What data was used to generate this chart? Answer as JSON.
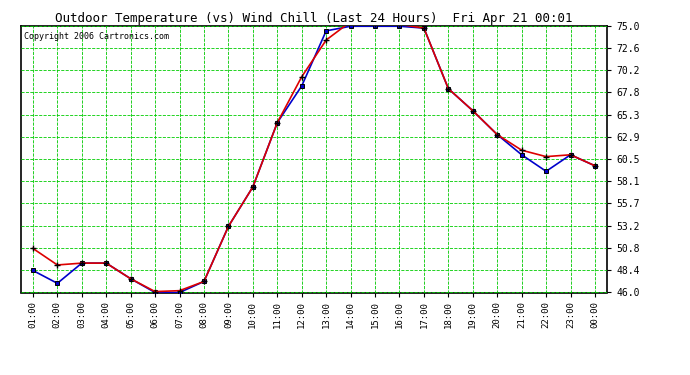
{
  "title": "Outdoor Temperature (vs) Wind Chill (Last 24 Hours)  Fri Apr 21 00:01",
  "copyright": "Copyright 2006 Cartronics.com",
  "x_labels": [
    "01:00",
    "02:00",
    "03:00",
    "04:00",
    "05:00",
    "06:00",
    "07:00",
    "08:00",
    "09:00",
    "10:00",
    "11:00",
    "12:00",
    "13:00",
    "14:00",
    "15:00",
    "16:00",
    "17:00",
    "18:00",
    "19:00",
    "20:00",
    "21:00",
    "22:00",
    "23:00",
    "00:00"
  ],
  "temp_red": [
    50.8,
    49.0,
    49.2,
    49.2,
    47.5,
    46.1,
    46.2,
    47.2,
    53.2,
    57.5,
    64.5,
    69.5,
    73.5,
    75.5,
    75.2,
    75.2,
    74.8,
    68.2,
    65.8,
    63.2,
    61.5,
    60.8,
    61.0,
    59.8
  ],
  "wind_blue": [
    48.4,
    47.0,
    49.2,
    49.2,
    47.5,
    46.0,
    46.0,
    47.2,
    53.2,
    57.5,
    64.5,
    68.5,
    74.5,
    75.0,
    75.0,
    75.0,
    74.8,
    68.2,
    65.8,
    63.2,
    61.0,
    59.2,
    61.0,
    59.8
  ],
  "y_min": 46.0,
  "y_max": 75.0,
  "y_ticks": [
    46.0,
    48.4,
    50.8,
    53.2,
    55.7,
    58.1,
    60.5,
    62.9,
    65.3,
    67.8,
    70.2,
    72.6,
    75.0
  ],
  "bg_color": "#ffffff",
  "plot_bg": "#ffffff",
  "grid_major_color": "#00cc00",
  "grid_minor_color": "#aaffaa",
  "red_color": "#dd0000",
  "blue_color": "#0000cc",
  "title_color": "#000000",
  "copyright_color": "#000000",
  "tick_label_color": "#000000",
  "figwidth": 6.9,
  "figheight": 3.75,
  "dpi": 100
}
